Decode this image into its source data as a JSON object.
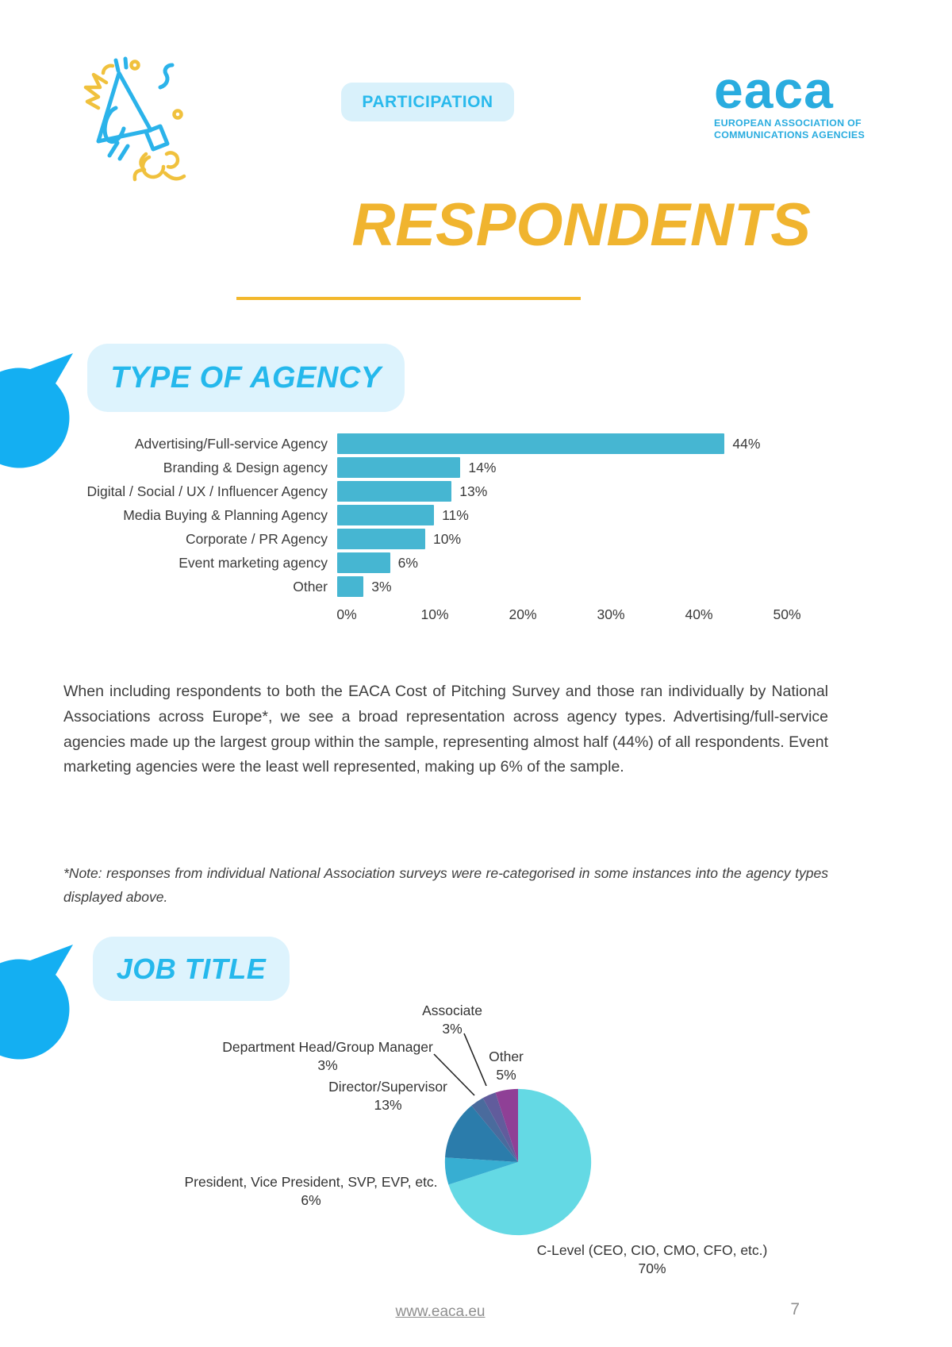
{
  "header": {
    "badge": "PARTICIPATION",
    "logo": {
      "wordmark": "eaca",
      "subtitle_line1": "EUROPEAN ASSOCIATION OF",
      "subtitle_line2": "COMMUNICATIONS AGENCIES"
    }
  },
  "title": "RESPONDENTS",
  "sections": [
    {
      "heading": "TYPE OF AGENCY"
    },
    {
      "heading": "JOB TITLE"
    }
  ],
  "body_text": "When including respondents to both the EACA Cost of Pitching Survey and those ran individually by National Associations across Europe*, we see a broad representation across agency types. Advertising/full-service agencies made up the largest group within the sample, representing almost half (44%) of all respondents. Event marketing agencies were the least well represented, making up 6% of the sample.",
  "note_text": "*Note: responses from individual National Association surveys were re-categorised in some instances into the agency types displayed above.",
  "footer": {
    "link": "www.eaca.eu",
    "page_number": "7"
  },
  "colors": {
    "accent_blue": "#25b8ec",
    "bubble_blue": "#14aff2",
    "accent_yellow": "#f0b42f",
    "bar_teal": "#46b6d2",
    "heading_bg": "#ddf3fd"
  },
  "chart_data": [
    {
      "type": "bar",
      "orientation": "horizontal",
      "title": "Type of agency share of respondents",
      "categories": [
        "Advertising/Full-service Agency",
        "Branding & Design agency",
        "Digital / Social / UX / Influencer Agency",
        "Media Buying & Planning Agency",
        "Corporate / PR Agency",
        "Event marketing agency",
        "Other"
      ],
      "values": [
        44,
        14,
        13,
        11,
        10,
        6,
        3
      ],
      "value_labels": [
        "44%",
        "14%",
        "13%",
        "11%",
        "10%",
        "6%",
        "3%"
      ],
      "x_ticks": [
        "0%",
        "10%",
        "20%",
        "30%",
        "40%",
        "50%"
      ],
      "xlim": [
        0,
        50
      ],
      "bar_color": "#46b6d2",
      "grid": false
    },
    {
      "type": "pie",
      "title": "Job title share of respondents",
      "start_angle_deg": 0,
      "clockwise": true,
      "slices": [
        {
          "label": "C-Level (CEO, CIO, CMO, CFO, etc.)",
          "pct_label": "70%",
          "value": 70,
          "color": "#64d9e4"
        },
        {
          "label": "President, Vice President, SVP, EVP, etc.",
          "pct_label": "6%",
          "value": 6,
          "color": "#37aed2"
        },
        {
          "label": "Director/Supervisor",
          "pct_label": "13%",
          "value": 13,
          "color": "#2b7cab"
        },
        {
          "label": "Department Head/Group Manager",
          "pct_label": "3%",
          "value": 3,
          "color": "#4a6b9d"
        },
        {
          "label": "Associate",
          "pct_label": "3%",
          "value": 3,
          "color": "#615c9c"
        },
        {
          "label": "Other",
          "pct_label": "5%",
          "value": 5,
          "color": "#8f4096"
        }
      ]
    }
  ]
}
